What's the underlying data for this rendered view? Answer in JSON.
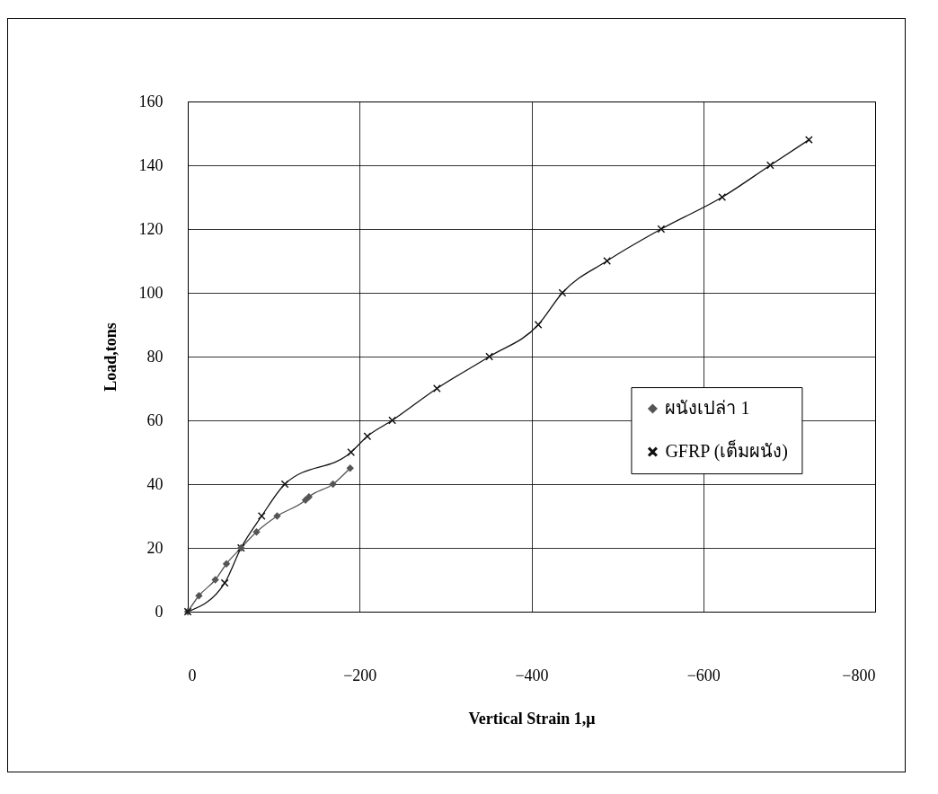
{
  "chart_data": {
    "type": "line",
    "xlabel": "Vertical Strain 1,μ",
    "ylabel": "Load,tons",
    "xlim": [
      0,
      -800
    ],
    "xticks": [
      0,
      -200,
      -400,
      -600,
      -800
    ],
    "ylim": [
      0,
      160
    ],
    "yticks": [
      0,
      20,
      40,
      60,
      80,
      100,
      120,
      140,
      160
    ],
    "grid": true,
    "legend": "right",
    "series": [
      {
        "name": "ผนังเปล่า 1",
        "color": "#555555",
        "marker": "diamond",
        "x": [
          0,
          -13,
          -32,
          -45,
          -62,
          -80,
          -104,
          -137,
          -141,
          -169,
          -189
        ],
        "values": [
          0,
          5,
          10,
          15,
          20,
          25,
          30,
          35,
          36,
          40,
          45
        ]
      },
      {
        "name": "GFRP (เต็มผนัง)",
        "color": "#111111",
        "marker": "cross",
        "x": [
          0,
          -43,
          -62,
          -86,
          -113,
          -190,
          -209,
          -238,
          -290,
          -351,
          -408,
          -436,
          -488,
          -551,
          -622,
          -678,
          -723
        ],
        "values": [
          0,
          9,
          20,
          30,
          40,
          50,
          55,
          60,
          70,
          80,
          90,
          100,
          110,
          120,
          130,
          140,
          148
        ]
      }
    ]
  }
}
